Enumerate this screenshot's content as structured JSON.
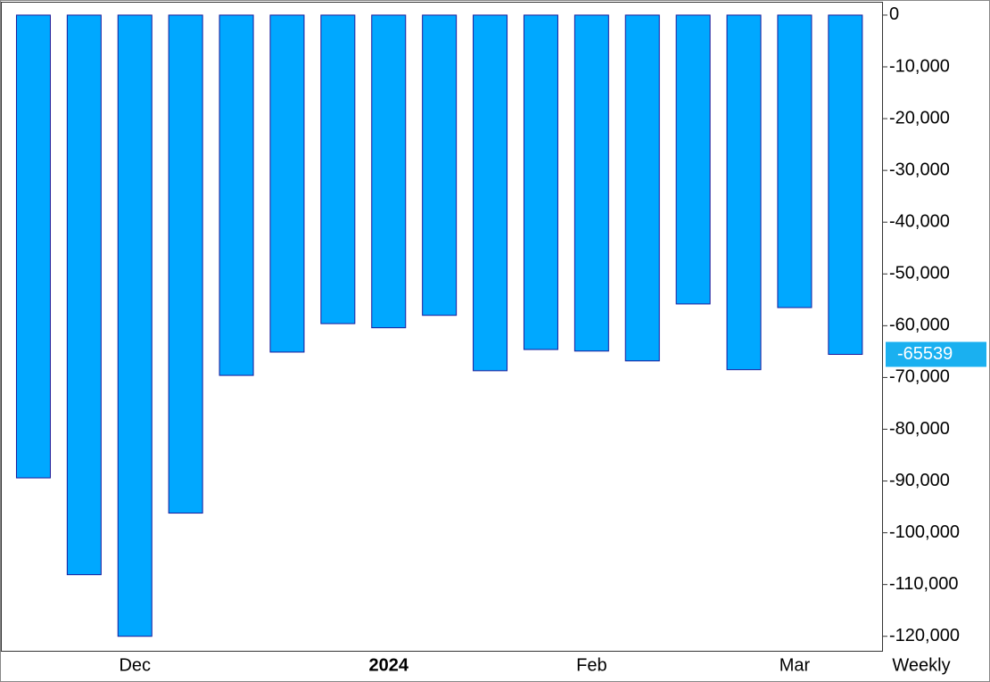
{
  "chart_data": {
    "type": "bar",
    "categories": [
      null,
      null,
      "Dec",
      null,
      null,
      null,
      null,
      "2024",
      null,
      null,
      null,
      "Feb",
      null,
      null,
      null,
      "Mar",
      null
    ],
    "series": [
      {
        "color": "#00a8ff",
        "values": [
          -89400,
          -108100,
          -120000,
          -96200,
          -69600,
          -65100,
          -59600,
          -60400,
          -58000,
          -68700,
          -64600,
          -64900,
          -66800,
          -55800,
          -68500,
          -56500,
          -65539
        ]
      }
    ],
    "ylim": [
      2400,
      -122800
    ],
    "yticks": [
      0,
      {
        "value": -10000,
        "label": "-10,000"
      },
      {
        "value": -20000,
        "label": "-20,000"
      },
      {
        "value": -30000,
        "label": "-30,000"
      },
      {
        "value": -40000,
        "label": "-40,000"
      },
      {
        "value": -50000,
        "label": "-50,000"
      },
      {
        "value": -60000,
        "label": "-60,000"
      },
      {
        "value": -70000,
        "label": "-70,000"
      },
      {
        "value": -80000,
        "label": "-80,000"
      },
      {
        "value": -90000,
        "label": "-90,000"
      },
      {
        "value": -100000,
        "label": "-100,000"
      },
      {
        "value": -110000,
        "label": "-110,000"
      },
      {
        "value": -120000,
        "label": "-120,000"
      }
    ],
    "period_label": "Weekly",
    "last_value_color": "#1ab0f0"
  }
}
